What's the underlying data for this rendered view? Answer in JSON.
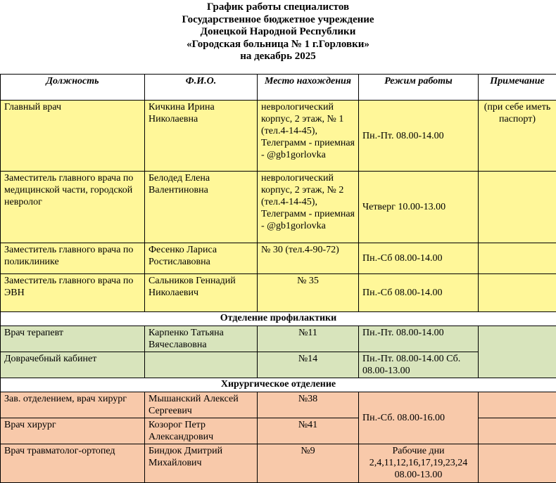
{
  "header": {
    "lines": [
      "График работы специалистов",
      "Государственное бюджетное учреждение",
      "Донецкой Народной Республики",
      "«Городская больница № 1 г.Горловки»",
      "на декабрь 2025"
    ]
  },
  "table": {
    "columns": [
      "Должность",
      "Ф.И.О.",
      "Место нахождения",
      "Режим работы",
      "Примечание"
    ],
    "rows": [
      {
        "position": "Главный врач",
        "name": "Кичкина Ирина Николаевна",
        "location": "неврологический корпус, 2 этаж, № 1 (тел.4-14-45), Телеграмм - приемная - @gb1gorlovka",
        "schedule": "Пн.-Пт. 08.00-14.00",
        "note": "(при себе иметь паспорт)"
      },
      {
        "position": "Заместитель главного врача по медицинской части, городской невролог",
        "name": "Белодед Елена Валентиновна",
        "location": "неврологический корпус, 2 этаж, № 2 (тел.4-14-45), Телеграмм - приемная - @gb1gorlovka",
        "schedule": "Четверг 10.00-13.00"
      },
      {
        "position": "Заместитель главного врача по поликлинике",
        "name": "Фесенко Лариса Ростиславовна",
        "location": "№ 30 (тел.4-90-72)",
        "schedule": "Пн.-Сб 08.00-14.00"
      },
      {
        "position": "Заместитель главного врача по ЭВН",
        "name": "Сальников Геннадий Николаевич",
        "location": "№ 35",
        "schedule": "Пн.-Сб 08.00-14.00"
      },
      {
        "section": "Отделение профилактики"
      },
      {
        "position": "Врач терапевт",
        "name": "Карпенко Татьяна Вячеславовна",
        "location": "№11",
        "schedule": "Пн.-Пт. 08.00-14.00"
      },
      {
        "position": "Доврачебный кабинет",
        "location": "№14",
        "schedule": "Пн.-Пт.  08.00-14.00 Сб. 08.00-13.00"
      },
      {
        "section": "Хирургическое отделение"
      },
      {
        "position": "Зав. отделением, врач хирург",
        "name": "Мышанский Алексей Сергеевич",
        "location": "№38",
        "schedule": "Пн.-Сб. 08.00-16.00"
      },
      {
        "position": "Врач хирург",
        "name": "Козорог Петр Александрович",
        "location": "№41"
      },
      {
        "position": "Врач травматолог-ортопед",
        "name": "Биндюк Дмитрий Михайлович",
        "location": "№9",
        "schedule": "Рабочие дни 2,4,11,12,16,17,19,23,24 08.00-13.00"
      }
    ]
  }
}
